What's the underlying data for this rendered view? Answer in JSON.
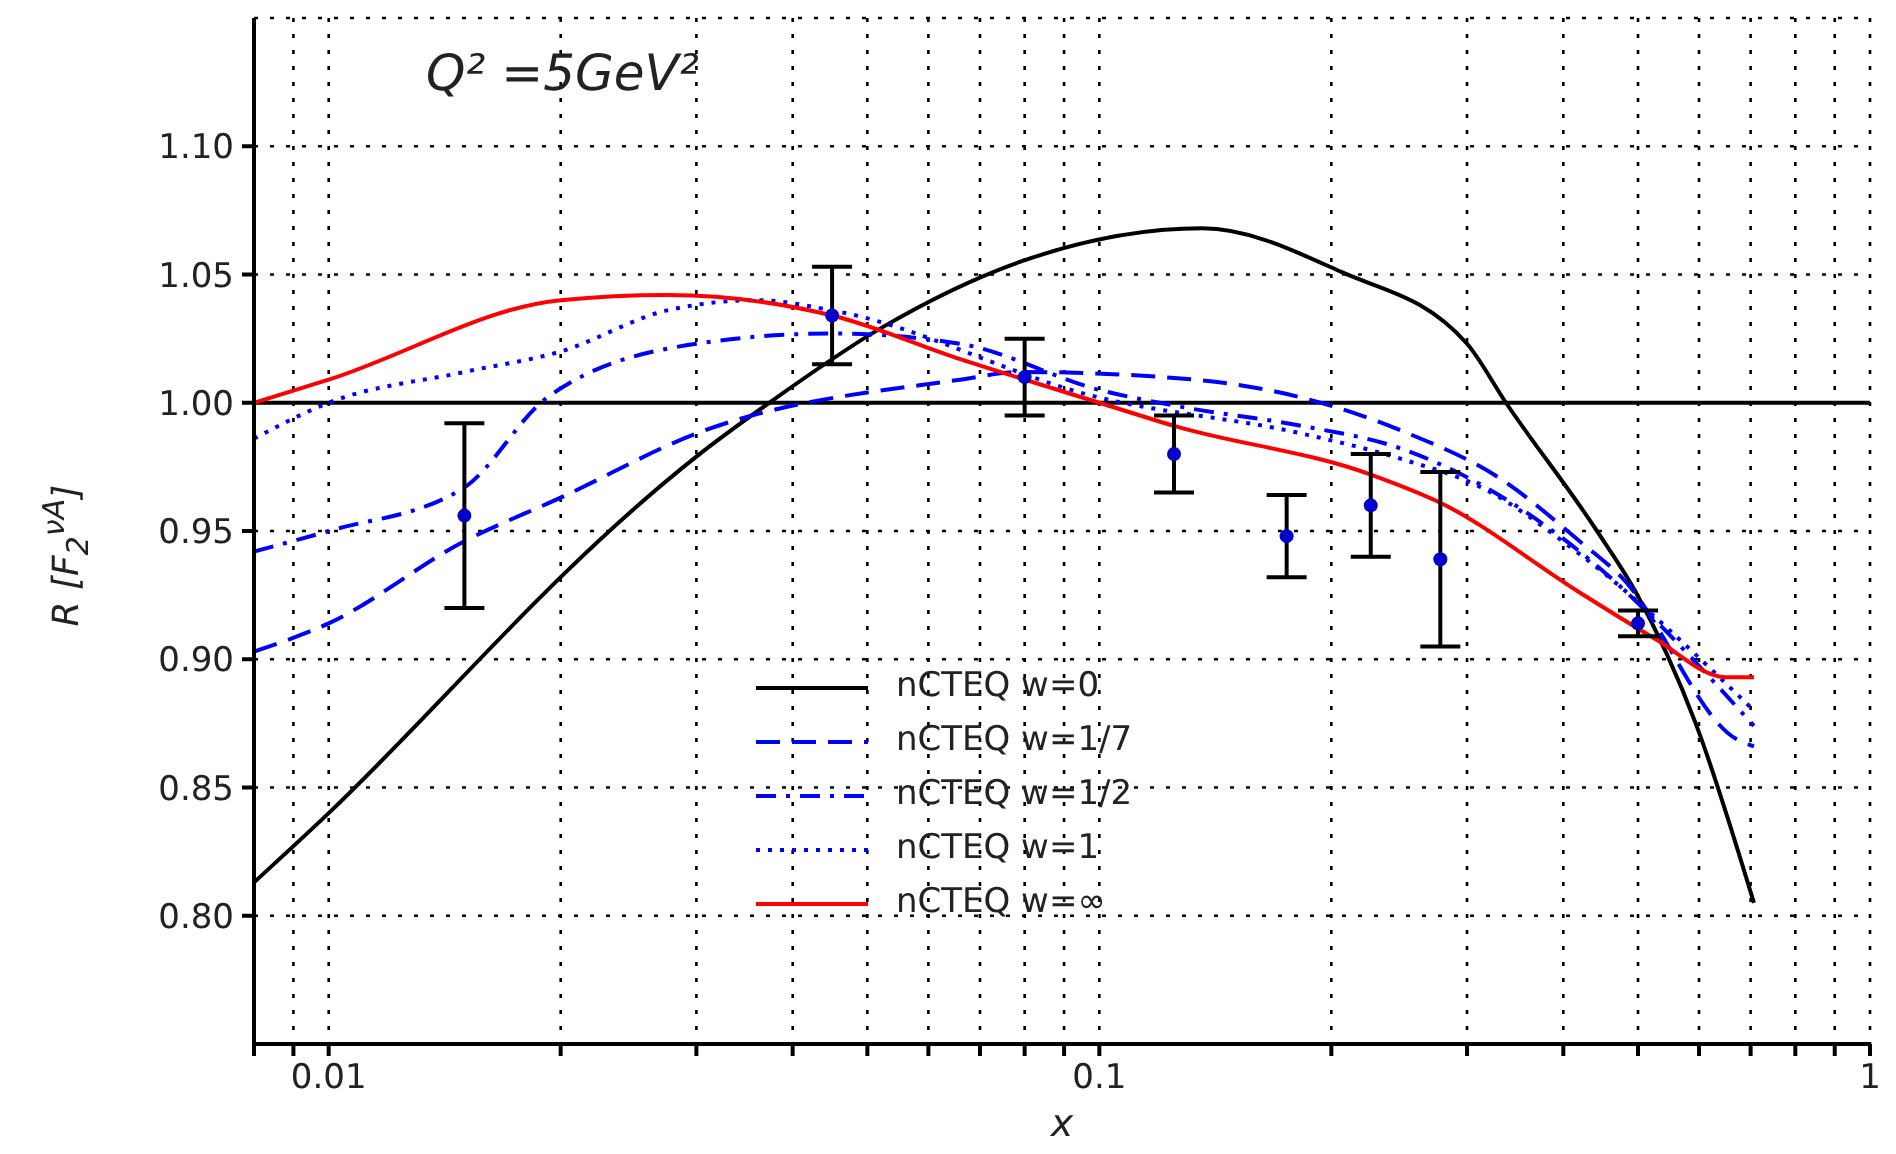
{
  "chart_data": {
    "type": "line",
    "xlabel": "x",
    "ylabel": "R [F$_{2}$$^{νA}$]",
    "annotations": [
      "Q² =5GeV²"
    ],
    "log": "x",
    "grid": true,
    "legend": "bottom",
    "xlim": [
      0.008,
      1
    ],
    "ylim": [
      0.75,
      1.15
    ],
    "xticks": [
      {
        "value": 0.008,
        "label": null
      },
      {
        "value": 0.009,
        "label": null
      },
      {
        "value": 0.01,
        "label": "0.01"
      },
      {
        "value": 0.02,
        "label": null
      },
      {
        "value": 0.03,
        "label": null
      },
      {
        "value": 0.04,
        "label": null
      },
      {
        "value": 0.05,
        "label": null
      },
      {
        "value": 0.06,
        "label": null
      },
      {
        "value": 0.07,
        "label": null
      },
      {
        "value": 0.08,
        "label": null
      },
      {
        "value": 0.09,
        "label": null
      },
      {
        "value": 0.1,
        "label": "0.1"
      },
      {
        "value": 0.2,
        "label": null
      },
      {
        "value": 0.3,
        "label": null
      },
      {
        "value": 0.4,
        "label": null
      },
      {
        "value": 0.5,
        "label": null
      },
      {
        "value": 0.6,
        "label": null
      },
      {
        "value": 0.7,
        "label": null
      },
      {
        "value": 0.8,
        "label": null
      },
      {
        "value": 0.9,
        "label": null
      },
      1
    ],
    "yticks": [
      {
        "value": 0.8,
        "label": "0.80"
      },
      {
        "value": 0.85,
        "label": "0.85"
      },
      {
        "value": 0.9,
        "label": "0.90"
      },
      {
        "value": 0.95,
        "label": "0.95"
      },
      {
        "value": 1.0,
        "label": "1.00"
      },
      {
        "value": 1.05,
        "label": "1.05"
      },
      {
        "value": 1.1,
        "label": "1.10"
      }
    ],
    "ref_lines": [
      {
        "axis": "y",
        "value": 1.0,
        "color": "#000000"
      }
    ],
    "series": [
      {
        "name": "nCTEQ w=0",
        "color": "#000000",
        "line_style": "solid",
        "marker": "none",
        "x": [
          0.008,
          0.01,
          0.0188,
          0.02,
          0.03,
          0.0373,
          0.052,
          0.079,
          0.136,
          0.206,
          0.3,
          0.337,
          0.44,
          0.497,
          0.594,
          0.707
        ],
        "values": [
          0.813,
          0.84,
          0.924,
          0.932,
          0.979,
          1.0,
          1.029,
          1.055,
          1.068,
          1.051,
          1.023,
          1.0,
          0.951,
          0.926,
          0.875,
          0.805
        ]
      },
      {
        "name": "nCTEQ w=1/7",
        "color": "#0000ff",
        "line_style": "dashed",
        "marker": "none",
        "x": [
          0.008,
          0.01,
          0.015,
          0.02,
          0.03,
          0.066,
          0.079,
          0.133,
          0.183,
          0.247,
          0.333,
          0.42,
          0.476,
          0.67,
          0.707
        ],
        "values": [
          0.903,
          0.914,
          0.946,
          0.963,
          0.988,
          1.009,
          1.012,
          1.009,
          1.002,
          0.989,
          0.97,
          0.946,
          0.932,
          0.869,
          0.866
        ]
      },
      {
        "name": "nCTEQ w=1/2",
        "color": "#0000ff",
        "line_style": "dashdot",
        "marker": "none",
        "x": [
          0.008,
          0.01,
          0.015,
          0.0192,
          0.03,
          0.045,
          0.066,
          0.1,
          0.13,
          0.183,
          0.247,
          0.313,
          0.42,
          0.707
        ],
        "values": [
          0.942,
          0.95,
          0.967,
          1.002,
          1.023,
          1.027,
          1.023,
          1.005,
          0.998,
          0.991,
          0.982,
          0.968,
          0.942,
          0.874
        ]
      },
      {
        "name": "nCTEQ w=1",
        "color": "#0000ff",
        "line_style": "dotted",
        "marker": "none",
        "x": [
          0.008,
          0.01,
          0.015,
          0.02,
          0.0275,
          0.036,
          0.045,
          0.1,
          0.183,
          0.247,
          0.313,
          0.42,
          0.707
        ],
        "values": [
          0.986,
          1.0,
          1.012,
          1.02,
          1.036,
          1.04,
          1.036,
          1.002,
          0.988,
          0.978,
          0.967,
          0.941,
          0.88
        ]
      },
      {
        "name": "nCTEQ w=∞",
        "color": "#ff0000",
        "line_style": "solid",
        "marker": "none",
        "x": [
          0.008,
          0.01,
          0.02,
          0.0275,
          0.045,
          0.066,
          0.1,
          0.125,
          0.225,
          0.277,
          0.42,
          0.526,
          0.65,
          0.707
        ],
        "values": [
          1.0,
          1.009,
          1.04,
          1.042,
          1.034,
          1.017,
          1.0,
          0.991,
          0.972,
          0.961,
          0.926,
          0.908,
          0.893,
          0.893
        ]
      },
      {
        "type": "scatter",
        "color": "#0000cc",
        "marker": "circle",
        "x": [
          0.015,
          0.045,
          0.08,
          0.125,
          0.175,
          0.225,
          0.277,
          0.5
        ],
        "values": [
          0.956,
          1.034,
          1.01,
          0.98,
          0.948,
          0.96,
          0.939,
          0.914
        ],
        "errors": [
          0.036,
          0.019,
          0.015,
          0.015,
          0.016,
          0.02,
          0.034,
          0.005
        ]
      }
    ]
  }
}
